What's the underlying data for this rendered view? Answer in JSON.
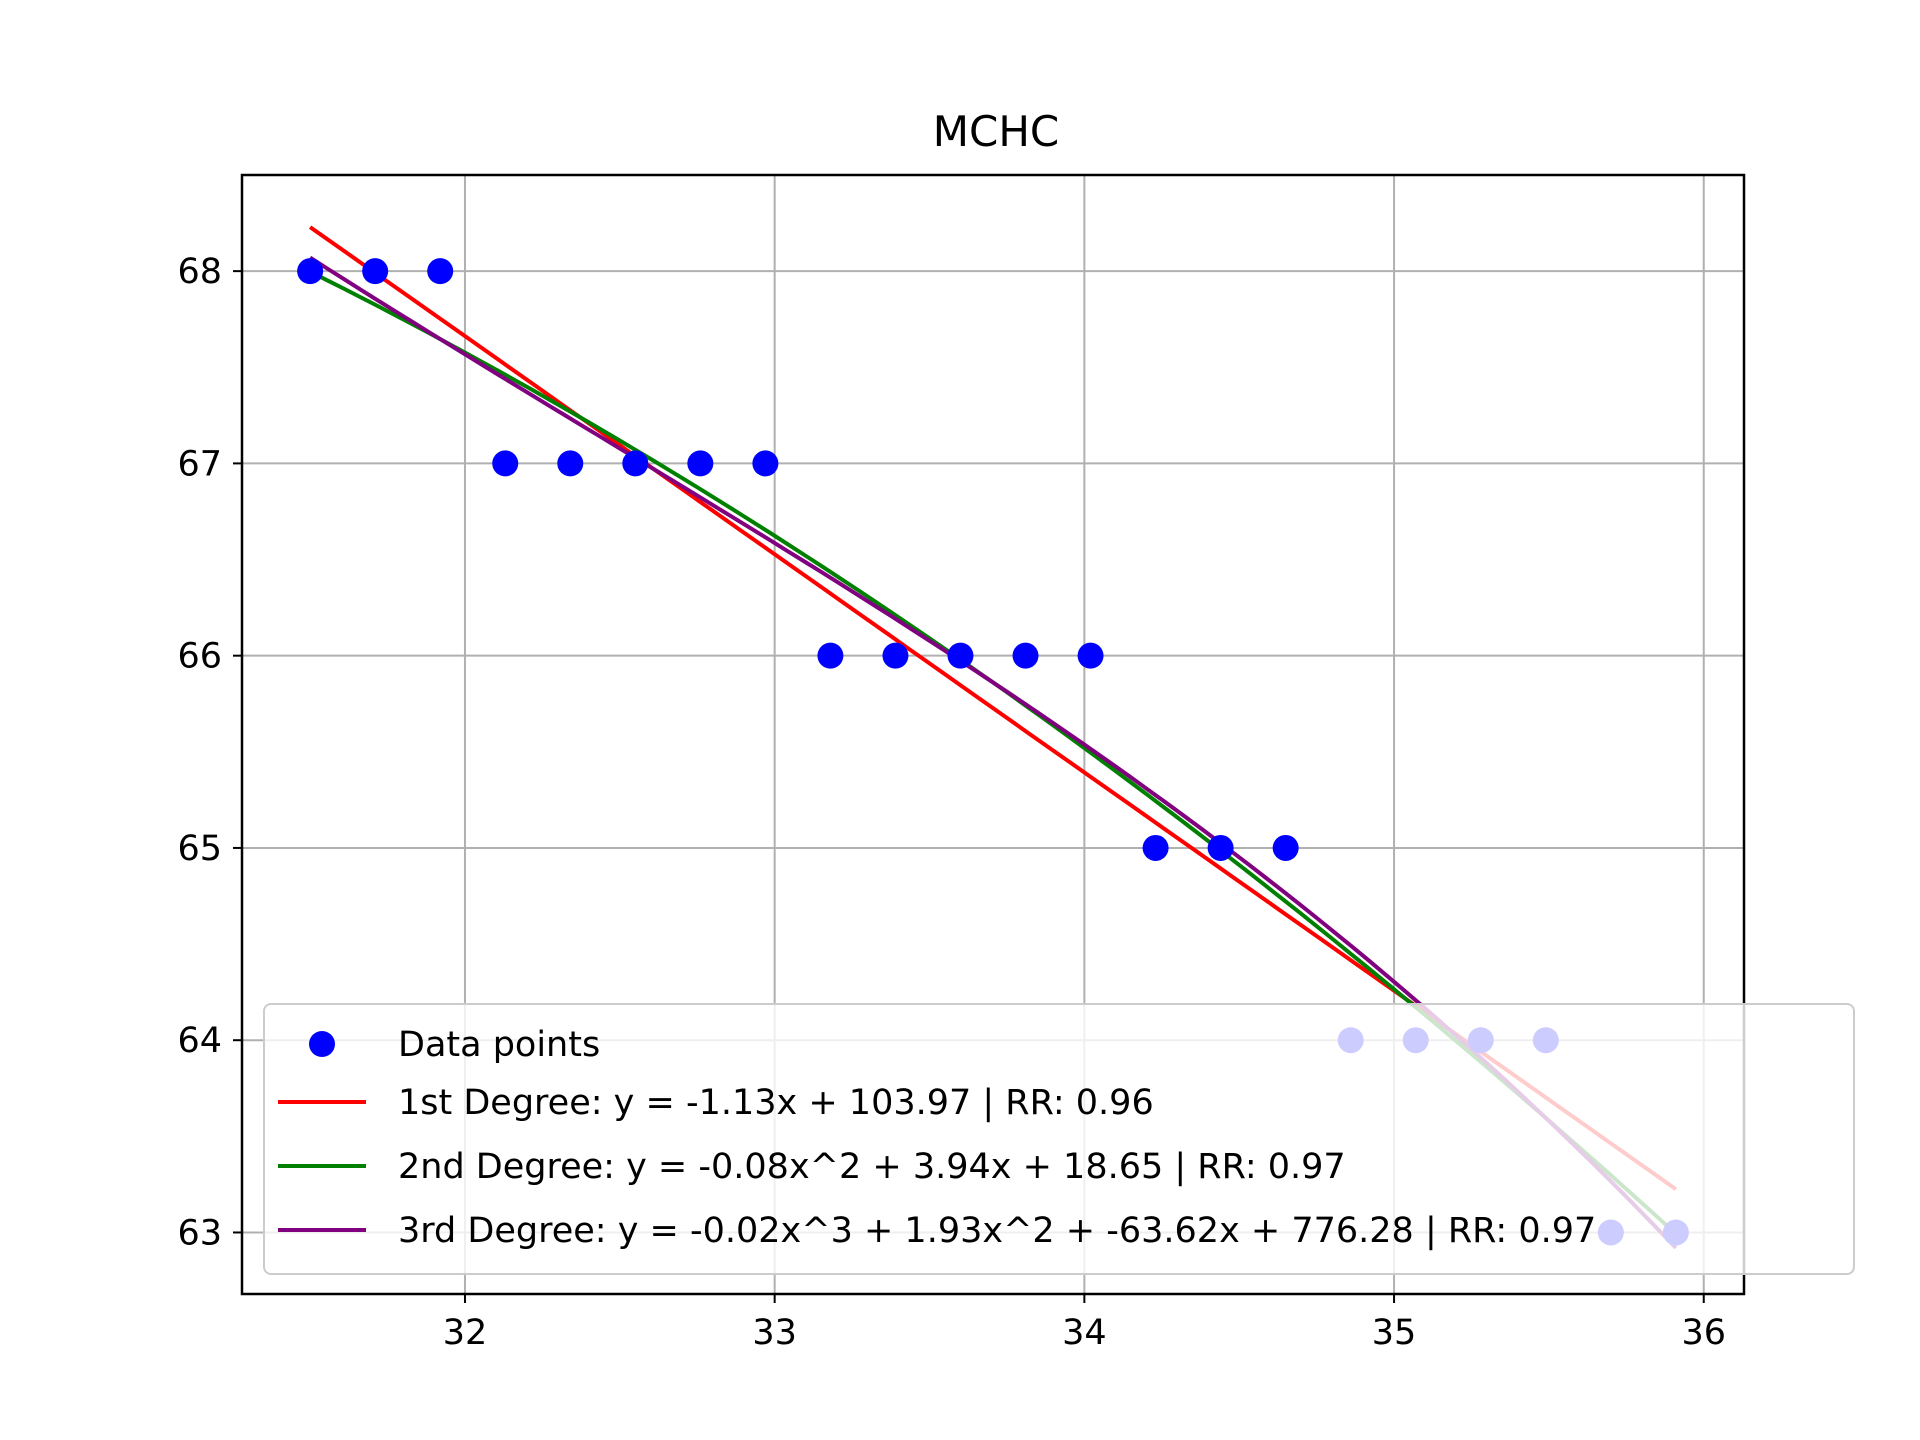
{
  "chart_data": {
    "type": "scatter",
    "title": "MCHC",
    "xlabel": "",
    "ylabel": "",
    "xlim": [
      31.28,
      36.13
    ],
    "ylim": [
      62.68,
      68.5
    ],
    "x_ticks": [
      32,
      33,
      34,
      35,
      36
    ],
    "y_ticks": [
      63,
      64,
      65,
      66,
      67,
      68
    ],
    "grid": true,
    "legend_position": "lower right",
    "points": {
      "name": "Data points",
      "color": "#0000ff",
      "x": [
        31.5,
        31.71,
        31.92,
        32.13,
        32.34,
        32.55,
        32.76,
        32.97,
        33.18,
        33.39,
        33.6,
        33.81,
        34.02,
        34.23,
        34.44,
        34.65,
        34.86,
        35.07,
        35.28,
        35.49,
        35.7,
        35.91
      ],
      "y": [
        68,
        68,
        68,
        67,
        67,
        67,
        67,
        67,
        66,
        66,
        66,
        66,
        66,
        65,
        65,
        65,
        64,
        64,
        64,
        64,
        63,
        63
      ]
    },
    "fits": [
      {
        "name": "1st Degree: y = -1.13x + 103.97 | RR: 0.96",
        "color": "#ff0000",
        "degree": 1,
        "x_range": [
          31.5,
          35.91
        ]
      },
      {
        "name": "2nd Degree: y = -0.08x^2 + 3.94x + 18.65 | RR: 0.97",
        "color": "#008000",
        "degree": 2,
        "x_range": [
          31.5,
          35.91
        ]
      },
      {
        "name": "3rd Degree: y = -0.02x^3 + 1.93x^2 + -63.62x + 776.28 | RR: 0.97",
        "color": "#800080",
        "degree": 3,
        "x_range": [
          31.5,
          35.91
        ]
      }
    ]
  }
}
